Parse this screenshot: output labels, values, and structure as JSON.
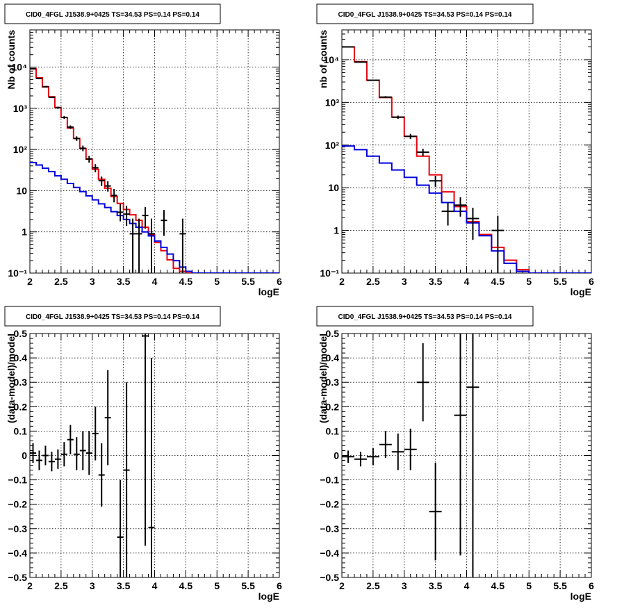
{
  "colors": {
    "data": "#000000",
    "total_model": "#e8000b",
    "source_model": "#0000dd"
  },
  "chart_data": [
    {
      "type": "line",
      "title": "CID0_4FGL J1538.9+0425 TS=34.53 PS=0.14 PS=0.14",
      "xlabel": "logE",
      "ylabel": "Nb of counts",
      "xlim": [
        2,
        6
      ],
      "ylim": [
        0.1,
        80000
      ],
      "log_y": true,
      "grid": true,
      "xticks": [
        2,
        2.5,
        3,
        3.5,
        4,
        4.5,
        5,
        5.5,
        6
      ],
      "xtick_labels": [
        "2",
        "2.5",
        "3",
        "3.5",
        "4",
        "4.5",
        "5",
        "5.5",
        "6"
      ],
      "yticks": [
        0.1,
        1,
        10,
        100,
        1000,
        10000
      ],
      "ytick_labels": [
        "10⁻¹",
        "1",
        "10",
        "10²",
        "10³",
        "10⁴"
      ],
      "bin_edges": [
        2.0,
        2.1,
        2.2,
        2.3,
        2.4,
        2.5,
        2.6,
        2.7,
        2.8,
        2.9,
        3.0,
        3.1,
        3.2,
        3.3,
        3.4,
        3.5,
        3.6,
        3.7,
        3.8,
        3.9,
        4.0,
        4.1,
        4.2,
        4.3,
        4.4,
        4.5,
        4.6,
        4.7,
        4.8,
        4.9,
        5.0,
        5.1,
        5.2,
        5.3,
        5.4,
        5.5,
        5.6,
        5.7,
        5.8,
        5.9,
        6.0
      ],
      "series": [
        {
          "name": "",
          "kind": "step",
          "color": "#e8000b",
          "values": [
            9000,
            5500,
            3300,
            1900,
            1050,
            600,
            330,
            185,
            105,
            58,
            33,
            19,
            11.5,
            7.2,
            4.9,
            3.5,
            2.6,
            1.9,
            1.3,
            0.85,
            0.55,
            0.35,
            0.21,
            0.13,
            0.11,
            0.1,
            0.1,
            0.1,
            0.1,
            0.1,
            0.1,
            0.1,
            0.1,
            0.1,
            0.1,
            0.1,
            0.1,
            0.1,
            0.1,
            0.1
          ]
        },
        {
          "name": "",
          "kind": "step",
          "color": "#0000dd",
          "values": [
            48,
            42,
            35,
            29,
            23,
            19,
            15,
            12,
            9.5,
            7.5,
            6.0,
            4.8,
            3.9,
            3.1,
            2.5,
            2.0,
            1.6,
            1.3,
            1.0,
            0.8,
            0.6,
            0.42,
            0.29,
            0.2,
            0.14,
            0.11,
            0.1,
            0.1,
            0.1,
            0.1,
            0.1,
            0.1,
            0.1,
            0.1,
            0.1,
            0.1,
            0.1,
            0.1,
            0.1,
            0.1
          ]
        },
        {
          "name": "",
          "kind": "errorbar",
          "color": "#000000",
          "points": [
            {
              "x": 2.05,
              "xerr": 0.05,
              "y": 9200,
              "lo": 9000,
              "hi": 9400
            },
            {
              "x": 2.15,
              "xerr": 0.05,
              "y": 5300,
              "lo": 5150,
              "hi": 5450
            },
            {
              "x": 2.25,
              "xerr": 0.05,
              "y": 3350,
              "lo": 3240,
              "hi": 3460
            },
            {
              "x": 2.35,
              "xerr": 0.05,
              "y": 1850,
              "lo": 1770,
              "hi": 1930
            },
            {
              "x": 2.45,
              "xerr": 0.05,
              "y": 1030,
              "lo": 970,
              "hi": 1090
            },
            {
              "x": 2.55,
              "xerr": 0.05,
              "y": 600,
              "lo": 555,
              "hi": 645
            },
            {
              "x": 2.65,
              "xerr": 0.05,
              "y": 350,
              "lo": 316,
              "hi": 384
            },
            {
              "x": 2.75,
              "xerr": 0.05,
              "y": 185,
              "lo": 162,
              "hi": 208
            },
            {
              "x": 2.85,
              "xerr": 0.05,
              "y": 107,
              "lo": 91,
              "hi": 124
            },
            {
              "x": 2.95,
              "xerr": 0.05,
              "y": 59,
              "lo": 48,
              "hi": 70
            },
            {
              "x": 3.05,
              "xerr": 0.05,
              "y": 36,
              "lo": 28,
              "hi": 44
            },
            {
              "x": 3.15,
              "xerr": 0.05,
              "y": 17.5,
              "lo": 13,
              "hi": 22
            },
            {
              "x": 3.25,
              "xerr": 0.05,
              "y": 13,
              "lo": 9.5,
              "hi": 17
            },
            {
              "x": 3.35,
              "xerr": 0.05,
              "y": 7.7,
              "lo": 5.2,
              "hi": 11
            },
            {
              "x": 3.45,
              "xerr": 0.05,
              "y": 3.0,
              "lo": 1.8,
              "hi": 4.7
            },
            {
              "x": 3.55,
              "xerr": 0.05,
              "y": 2.7,
              "lo": 1.4,
              "hi": 4.3
            },
            {
              "x": 3.65,
              "xerr": 0.05,
              "y": 0.9,
              "lo": 0.1,
              "hi": 2.1
            },
            {
              "x": 3.75,
              "xerr": 0.05,
              "y": 0.9,
              "lo": 0.1,
              "hi": 2.1
            },
            {
              "x": 3.85,
              "xerr": 0.05,
              "y": 2.5,
              "lo": 1.2,
              "hi": 4.0
            },
            {
              "x": 3.95,
              "xerr": 0.05,
              "y": 0.9,
              "lo": 0.1,
              "hi": 2.1
            },
            {
              "x": 4.15,
              "xerr": 0.05,
              "y": 1.9,
              "lo": 0.8,
              "hi": 3.4
            },
            {
              "x": 4.45,
              "xerr": 0.05,
              "y": 0.9,
              "lo": 0.1,
              "hi": 2.1
            }
          ]
        }
      ]
    },
    {
      "type": "line",
      "title": "CID0_4FGL J1538.9+0425 TS=34.53 PS=0.14 PS=0.14",
      "xlabel": "logE",
      "ylabel": "nb of counts",
      "xlim": [
        2,
        6
      ],
      "ylim": [
        0.1,
        50000
      ],
      "log_y": true,
      "grid": true,
      "xticks": [
        2,
        2.5,
        3,
        3.5,
        4,
        4.5,
        5,
        5.5,
        6
      ],
      "xtick_labels": [
        "2",
        "2.5",
        "3",
        "3.5",
        "4",
        "4.5",
        "5",
        "5.5",
        "6"
      ],
      "yticks": [
        0.1,
        1,
        10,
        100,
        1000,
        10000
      ],
      "ytick_labels": [
        "10⁻¹",
        "1",
        "10",
        "10²",
        "10³",
        "10⁴"
      ],
      "bin_edges": [
        2.0,
        2.2,
        2.4,
        2.6,
        2.8,
        3.0,
        3.2,
        3.4,
        3.6,
        3.8,
        4.0,
        4.2,
        4.4,
        4.6,
        4.8,
        5.0,
        5.2,
        5.4,
        5.6,
        5.8,
        6.0
      ],
      "series": [
        {
          "name": "",
          "kind": "step",
          "color": "#e8000b",
          "values": [
            20000,
            9000,
            3300,
            1300,
            450,
            160,
            55,
            20,
            8,
            3.6,
            1.6,
            0.8,
            0.4,
            0.2,
            0.12,
            0.1,
            0.1,
            0.1,
            0.1,
            0.1
          ]
        },
        {
          "name": "",
          "kind": "step",
          "color": "#0000dd",
          "values": [
            95,
            78,
            55,
            38,
            26,
            17.5,
            11.5,
            7.5,
            4.5,
            2.8,
            1.5,
            0.75,
            0.33,
            0.17,
            0.11,
            0.1,
            0.1,
            0.1,
            0.1,
            0.1
          ]
        },
        {
          "name": "",
          "kind": "errorbar",
          "color": "#000000",
          "points": [
            {
              "x": 2.1,
              "xerr": 0.1,
              "y": 20000,
              "lo": 19700,
              "hi": 20300
            },
            {
              "x": 2.3,
              "xerr": 0.1,
              "y": 8800,
              "lo": 8600,
              "hi": 9000
            },
            {
              "x": 2.5,
              "xerr": 0.1,
              "y": 3300,
              "lo": 3180,
              "hi": 3420
            },
            {
              "x": 2.7,
              "xerr": 0.1,
              "y": 1330,
              "lo": 1260,
              "hi": 1400
            },
            {
              "x": 2.9,
              "xerr": 0.1,
              "y": 450,
              "lo": 410,
              "hi": 490
            },
            {
              "x": 3.1,
              "xerr": 0.1,
              "y": 160,
              "lo": 138,
              "hi": 183
            },
            {
              "x": 3.3,
              "xerr": 0.1,
              "y": 68,
              "lo": 56,
              "hi": 82
            },
            {
              "x": 3.5,
              "xerr": 0.1,
              "y": 14.5,
              "lo": 10.5,
              "hi": 19
            },
            {
              "x": 3.7,
              "xerr": 0.1,
              "y": 2.8,
              "lo": 1.3,
              "hi": 4.5
            },
            {
              "x": 3.9,
              "xerr": 0.1,
              "y": 3.9,
              "lo": 2.1,
              "hi": 6.0
            },
            {
              "x": 4.1,
              "xerr": 0.1,
              "y": 1.9,
              "lo": 0.6,
              "hi": 3.4
            },
            {
              "x": 4.5,
              "xerr": 0.1,
              "y": 1.0,
              "lo": 0.1,
              "hi": 2.2
            }
          ]
        }
      ]
    },
    {
      "type": "scatter",
      "title": "CID0_4FGL J1538.9+0425 TS=34.53 PS=0.14 PS=0.14",
      "xlabel": "logE",
      "ylabel": "(data-model)/model",
      "xlim": [
        2,
        6
      ],
      "ylim": [
        -0.5,
        0.5
      ],
      "log_y": false,
      "grid": true,
      "xticks": [
        2,
        2.5,
        3,
        3.5,
        4,
        4.5,
        5,
        5.5,
        6
      ],
      "xtick_labels": [
        "2",
        "2.5",
        "3",
        "3.5",
        "4",
        "4.5",
        "5",
        "5.5",
        "6"
      ],
      "yticks": [
        -0.5,
        -0.4,
        -0.3,
        -0.2,
        -0.1,
        0,
        0.1,
        0.2,
        0.3,
        0.4,
        0.5
      ],
      "ytick_labels": [
        "−0.5",
        "−0.4",
        "−0.3",
        "−0.2",
        "−0.1",
        "0",
        "0.1",
        "0.2",
        "0.3",
        "0.4",
        "0.5"
      ],
      "series": [
        {
          "name": "",
          "kind": "errorbar",
          "color": "#000000",
          "points": [
            {
              "x": 2.05,
              "xerr": 0.05,
              "y": 0.01,
              "lo": -0.03,
              "hi": 0.05
            },
            {
              "x": 2.15,
              "xerr": 0.05,
              "y": -0.02,
              "lo": -0.06,
              "hi": 0.02
            },
            {
              "x": 2.25,
              "xerr": 0.05,
              "y": 0.0,
              "lo": -0.04,
              "hi": 0.04
            },
            {
              "x": 2.35,
              "xerr": 0.05,
              "y": -0.025,
              "lo": -0.065,
              "hi": 0.015
            },
            {
              "x": 2.45,
              "xerr": 0.05,
              "y": -0.015,
              "lo": -0.055,
              "hi": 0.025
            },
            {
              "x": 2.55,
              "xerr": 0.05,
              "y": 0.005,
              "lo": -0.045,
              "hi": 0.055
            },
            {
              "x": 2.65,
              "xerr": 0.05,
              "y": 0.065,
              "lo": 0.005,
              "hi": 0.125
            },
            {
              "x": 2.75,
              "xerr": 0.05,
              "y": 0.005,
              "lo": -0.06,
              "hi": 0.075
            },
            {
              "x": 2.85,
              "xerr": 0.05,
              "y": 0.02,
              "lo": -0.06,
              "hi": 0.1
            },
            {
              "x": 2.95,
              "xerr": 0.05,
              "y": 0.01,
              "lo": -0.08,
              "hi": 0.1
            },
            {
              "x": 3.05,
              "xerr": 0.05,
              "y": 0.09,
              "lo": -0.02,
              "hi": 0.2
            },
            {
              "x": 3.15,
              "xerr": 0.05,
              "y": -0.08,
              "lo": -0.21,
              "hi": 0.05
            },
            {
              "x": 3.25,
              "xerr": 0.05,
              "y": 0.155,
              "lo": -0.04,
              "hi": 0.35
            },
            {
              "x": 3.45,
              "xerr": 0.05,
              "y": -0.335,
              "lo": -0.5,
              "hi": -0.1
            },
            {
              "x": 3.55,
              "xerr": 0.05,
              "y": -0.06,
              "lo": -0.5,
              "hi": 0.3
            },
            {
              "x": 3.85,
              "xerr": 0.05,
              "y": 0.49,
              "lo": -0.37,
              "hi": 0.5
            },
            {
              "x": 3.95,
              "xerr": 0.05,
              "y": -0.295,
              "lo": -0.5,
              "hi": 0.4
            }
          ]
        }
      ]
    },
    {
      "type": "scatter",
      "title": "CID0_4FGL J1538.9+0425 TS=34.53 PS=0.14 PS=0.14",
      "xlabel": "logE",
      "ylabel": "(data-model)/model",
      "xlim": [
        2,
        6
      ],
      "ylim": [
        -0.5,
        0.5
      ],
      "log_y": false,
      "grid": true,
      "xticks": [
        2,
        2.5,
        3,
        3.5,
        4,
        4.5,
        5,
        5.5,
        6
      ],
      "xtick_labels": [
        "2",
        "2.5",
        "3",
        "3.5",
        "4",
        "4.5",
        "5",
        "5.5",
        "6"
      ],
      "yticks": [
        -0.5,
        -0.4,
        -0.3,
        -0.2,
        -0.1,
        0,
        0.1,
        0.2,
        0.3,
        0.4,
        0.5
      ],
      "ytick_labels": [
        "−0.5",
        "−0.4",
        "−0.3",
        "−0.2",
        "−0.1",
        "0",
        "0.1",
        "0.2",
        "0.3",
        "0.4",
        "0.5"
      ],
      "series": [
        {
          "name": "",
          "kind": "errorbar",
          "color": "#000000",
          "points": [
            {
              "x": 2.1,
              "xerr": 0.1,
              "y": -0.005,
              "lo": -0.03,
              "hi": 0.02
            },
            {
              "x": 2.3,
              "xerr": 0.1,
              "y": -0.015,
              "lo": -0.045,
              "hi": 0.015
            },
            {
              "x": 2.5,
              "xerr": 0.1,
              "y": -0.005,
              "lo": -0.04,
              "hi": 0.03
            },
            {
              "x": 2.7,
              "xerr": 0.1,
              "y": 0.045,
              "lo": -0.01,
              "hi": 0.1
            },
            {
              "x": 2.9,
              "xerr": 0.1,
              "y": 0.015,
              "lo": -0.06,
              "hi": 0.09
            },
            {
              "x": 3.1,
              "xerr": 0.1,
              "y": 0.025,
              "lo": -0.06,
              "hi": 0.11
            },
            {
              "x": 3.3,
              "xerr": 0.1,
              "y": 0.3,
              "lo": 0.14,
              "hi": 0.46
            },
            {
              "x": 3.5,
              "xerr": 0.1,
              "y": -0.23,
              "lo": -0.43,
              "hi": -0.03
            },
            {
              "x": 3.9,
              "xerr": 0.1,
              "y": 0.165,
              "lo": -0.41,
              "hi": 0.5
            },
            {
              "x": 4.1,
              "xerr": 0.1,
              "y": 0.28,
              "lo": -0.5,
              "hi": 0.5
            }
          ]
        }
      ]
    }
  ]
}
